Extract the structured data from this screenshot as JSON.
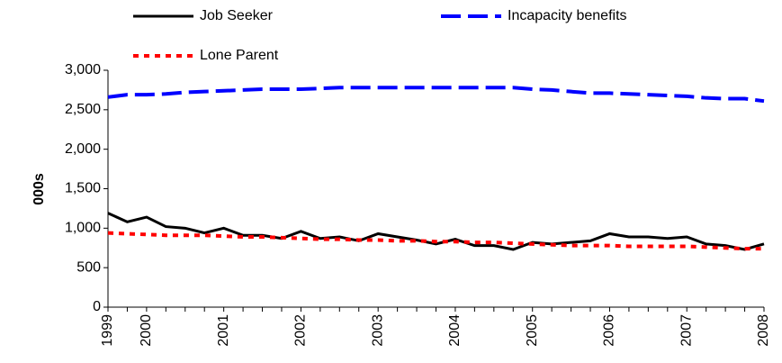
{
  "chart_data": {
    "type": "line",
    "y_label": "000s",
    "categories": [
      "1999",
      null,
      "2000",
      null,
      null,
      null,
      "2001",
      null,
      null,
      null,
      "2002",
      null,
      null,
      null,
      "2003",
      null,
      null,
      null,
      "2004",
      null,
      null,
      null,
      "2005",
      null,
      null,
      null,
      "2006",
      null,
      null,
      null,
      "2007",
      null,
      null,
      null,
      "2008"
    ],
    "series": [
      {
        "name": "Job Seeker",
        "color": "#000000",
        "style": "solid",
        "values": [
          1190,
          1080,
          1140,
          1020,
          1000,
          940,
          1000,
          910,
          910,
          870,
          960,
          870,
          890,
          840,
          930,
          890,
          850,
          800,
          860,
          780,
          780,
          730,
          820,
          800,
          820,
          840,
          930,
          890,
          890,
          870,
          890,
          800,
          780,
          730,
          800
        ]
      },
      {
        "name": "Incapacity benefits",
        "color": "#0000ff",
        "style": "dashed",
        "values": [
          2660,
          2690,
          2690,
          2700,
          2720,
          2730,
          2740,
          2750,
          2760,
          2760,
          2760,
          2770,
          2780,
          2780,
          2780,
          2780,
          2780,
          2780,
          2780,
          2780,
          2780,
          2780,
          2760,
          2750,
          2730,
          2710,
          2710,
          2700,
          2690,
          2680,
          2670,
          2650,
          2640,
          2640,
          2610
        ]
      },
      {
        "name": "Lone Parent",
        "color": "#ff0000",
        "style": "dotted",
        "values": [
          940,
          930,
          920,
          910,
          910,
          910,
          900,
          890,
          890,
          880,
          870,
          860,
          860,
          850,
          850,
          840,
          840,
          830,
          830,
          820,
          820,
          810,
          800,
          790,
          780,
          780,
          780,
          770,
          770,
          770,
          770,
          760,
          750,
          740,
          740
        ]
      }
    ],
    "ylim": [
      0,
      3000
    ],
    "yticks": [
      0,
      500,
      {
        "value": 1000,
        "label": "1,000"
      },
      {
        "value": 1500,
        "label": "1,500"
      },
      {
        "value": 2000,
        "label": "2,000"
      },
      {
        "value": 2500,
        "label": "2,500"
      },
      {
        "value": 3000,
        "label": "3,000"
      }
    ],
    "grid": false
  }
}
